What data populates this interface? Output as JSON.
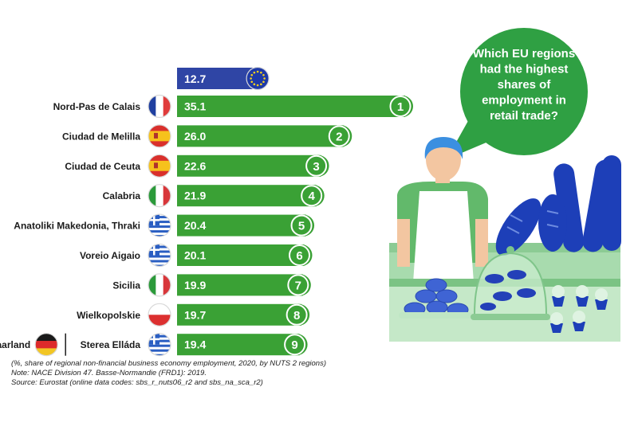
{
  "chart_data": {
    "type": "bar",
    "orientation": "horizontal",
    "eu": {
      "label": "",
      "value": 12.7,
      "value_label": "12.7",
      "color": "#2f45a5",
      "flag": "eu"
    },
    "rows": [
      {
        "region": "Nord-Pas de Calais",
        "value": 35.1,
        "value_label": "35.1",
        "rank": "1",
        "flag": "fr"
      },
      {
        "region": "Ciudad de Melilla",
        "value": 26.0,
        "value_label": "26.0",
        "rank": "2",
        "flag": "es"
      },
      {
        "region": "Ciudad de Ceuta",
        "value": 22.6,
        "value_label": "22.6",
        "rank": "3",
        "flag": "es"
      },
      {
        "region": "Calabria",
        "value": 21.9,
        "value_label": "21.9",
        "rank": "4",
        "flag": "it"
      },
      {
        "region": "Anatoliki Makedonia, Thraki",
        "value": 20.4,
        "value_label": "20.4",
        "rank": "5",
        "flag": "gr"
      },
      {
        "region": "Voreio Aigaio",
        "value": 20.1,
        "value_label": "20.1",
        "rank": "6",
        "flag": "gr"
      },
      {
        "region": "Sicilia",
        "value": 19.9,
        "value_label": "19.9",
        "rank": "7",
        "flag": "it"
      },
      {
        "region": "Wielkopolskie",
        "value": 19.7,
        "value_label": "19.7",
        "rank": "8",
        "flag": "pl"
      },
      {
        "region": "Sterea Elláda",
        "value": 19.4,
        "value_label": "19.4",
        "rank": "9",
        "flag": "gr",
        "tied_region": "Saarland",
        "tied_flag": "de"
      }
    ],
    "bar_color": "#3aa135",
    "eu_bar_color": "#2f45a5",
    "title_bubble": [
      "Which EU regions",
      "had the highest",
      "shares of",
      "employment in",
      "retail trade?"
    ],
    "xlim": [
      0,
      35.1
    ]
  },
  "notes": [
    "(%, share of regional non-financial business economy employment, 2020, by NUTS 2 regions)",
    "Note: NACE Division 47. Basse-Normandie (FRD1): 2019.",
    "Source: Eurostat (online data codes: sbs_r_nuts06_r2 and sbs_na_sca_r2)"
  ],
  "colors": {
    "green": "#3aa135",
    "dark_green": "#2c8a2c",
    "blue": "#2f45a5",
    "light_green": "#a8dbae"
  }
}
